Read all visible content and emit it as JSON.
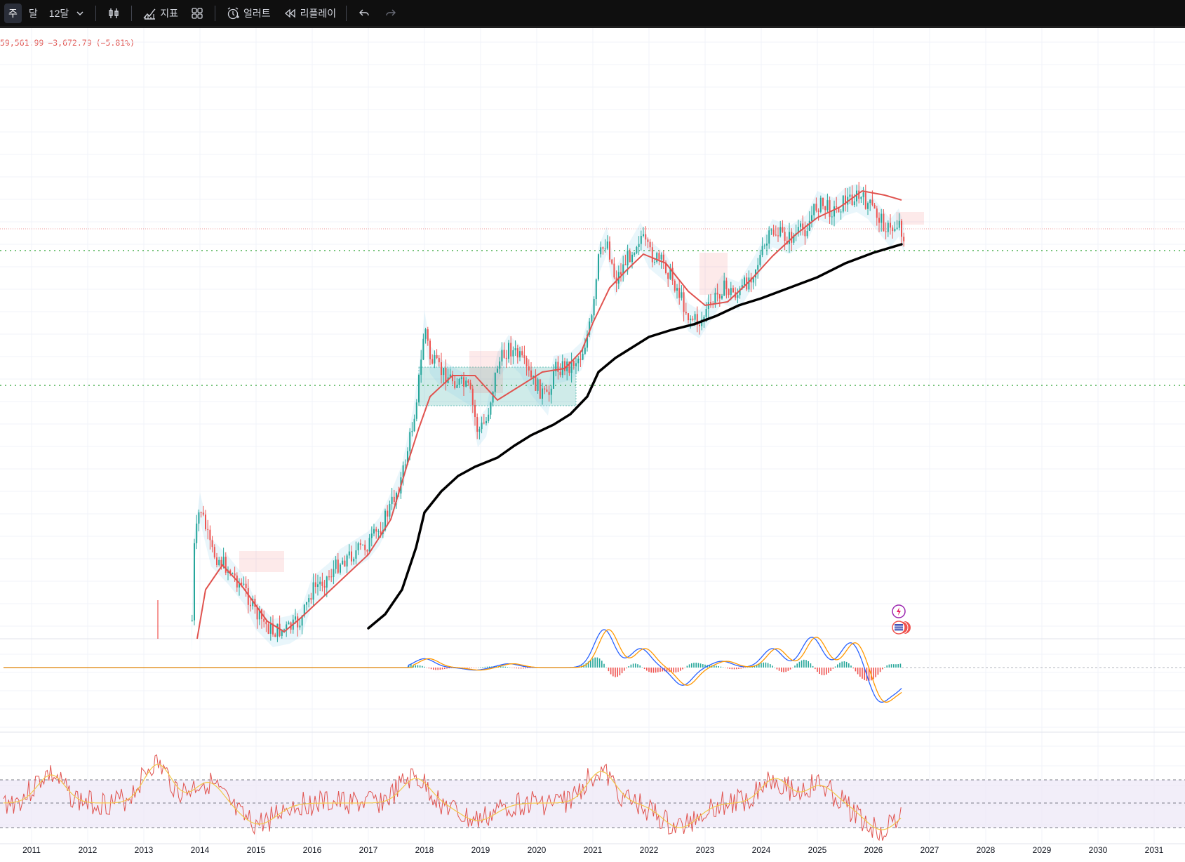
{
  "toolbar": {
    "intervals": [
      {
        "label": "주",
        "active": true
      },
      {
        "label": "달",
        "active": false
      },
      {
        "label": "12달",
        "active": false
      }
    ],
    "chevron_icon": "chevron-down-icon",
    "candle_icon": "candlestick-icon",
    "indicators_label": "지표",
    "indicators_icon": "indicators-icon",
    "layouts_icon": "grid-layout-icon",
    "alert_label": "얼러트",
    "alert_icon": "alarm-clock-plus-icon",
    "replay_label": "리플레이",
    "replay_icon": "rewind-icon",
    "undo_icon": "undo-icon",
    "redo_icon": "redo-icon"
  },
  "legend": {
    "price": "59,561.99",
    "change": "−3,672.79",
    "change_pct": "(−5.81%)",
    "color": "#e0534f"
  },
  "colors": {
    "bull": "#26a69a",
    "bear": "#ef5350",
    "ma_red": "#e0534f",
    "long_ma": "#000000",
    "macd": "#2962ff",
    "signal": "#ff9800",
    "rsi": "#e0534f",
    "rsi_ma": "#f2c94c",
    "rsi_band": "#ede7f6",
    "level_line": "#4caf50",
    "price_line": "#ef9a9a"
  },
  "chart_data": {
    "type": "line",
    "log_scale": true,
    "x_axis_years": [
      "2011",
      "2012",
      "2013",
      "2014",
      "2015",
      "2016",
      "2017",
      "2018",
      "2019",
      "2020",
      "2021",
      "2022",
      "2023",
      "2024",
      "2025",
      "2026",
      "2027",
      "2028",
      "2029",
      "2030",
      "2031"
    ],
    "current_price": 59561.99,
    "horizontal_levels": [
      "dotted-green-upper",
      "dotted-green-lower"
    ],
    "consolidation_box": {
      "from": "2017.9",
      "to": "2020.7"
    },
    "panes": [
      "price",
      "macd",
      "rsi"
    ],
    "rsi_band_lines": 3,
    "event_icons": [
      "flash-icon",
      "us-flag-icon"
    ]
  }
}
